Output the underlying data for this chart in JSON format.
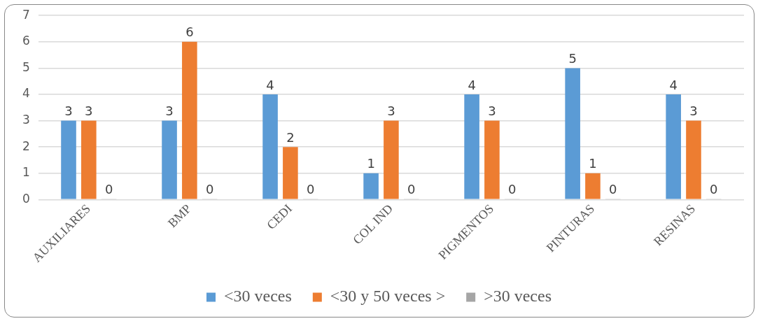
{
  "chart_data": {
    "type": "bar",
    "categories": [
      "AUXILIARES",
      "BMP",
      "CEDI",
      "COL IND",
      "PIGMENTOS",
      "PINTURAS",
      "RESINAS"
    ],
    "series": [
      {
        "name": "<30 veces",
        "color": "#5b9bd5",
        "values": [
          3,
          3,
          4,
          1,
          4,
          5,
          4
        ]
      },
      {
        "name": "<30 y 50 veces >",
        "color": "#ed7d31",
        "values": [
          3,
          6,
          2,
          3,
          3,
          1,
          3
        ]
      },
      {
        "name": ">30 veces",
        "color": "#a5a5a5",
        "values": [
          0,
          0,
          0,
          0,
          0,
          0,
          0
        ]
      }
    ],
    "ylim": [
      0,
      7
    ],
    "yticks": [
      0,
      1,
      2,
      3,
      4,
      5,
      6,
      7
    ],
    "grid": "y",
    "legend": "bottom",
    "data_labels": true
  }
}
